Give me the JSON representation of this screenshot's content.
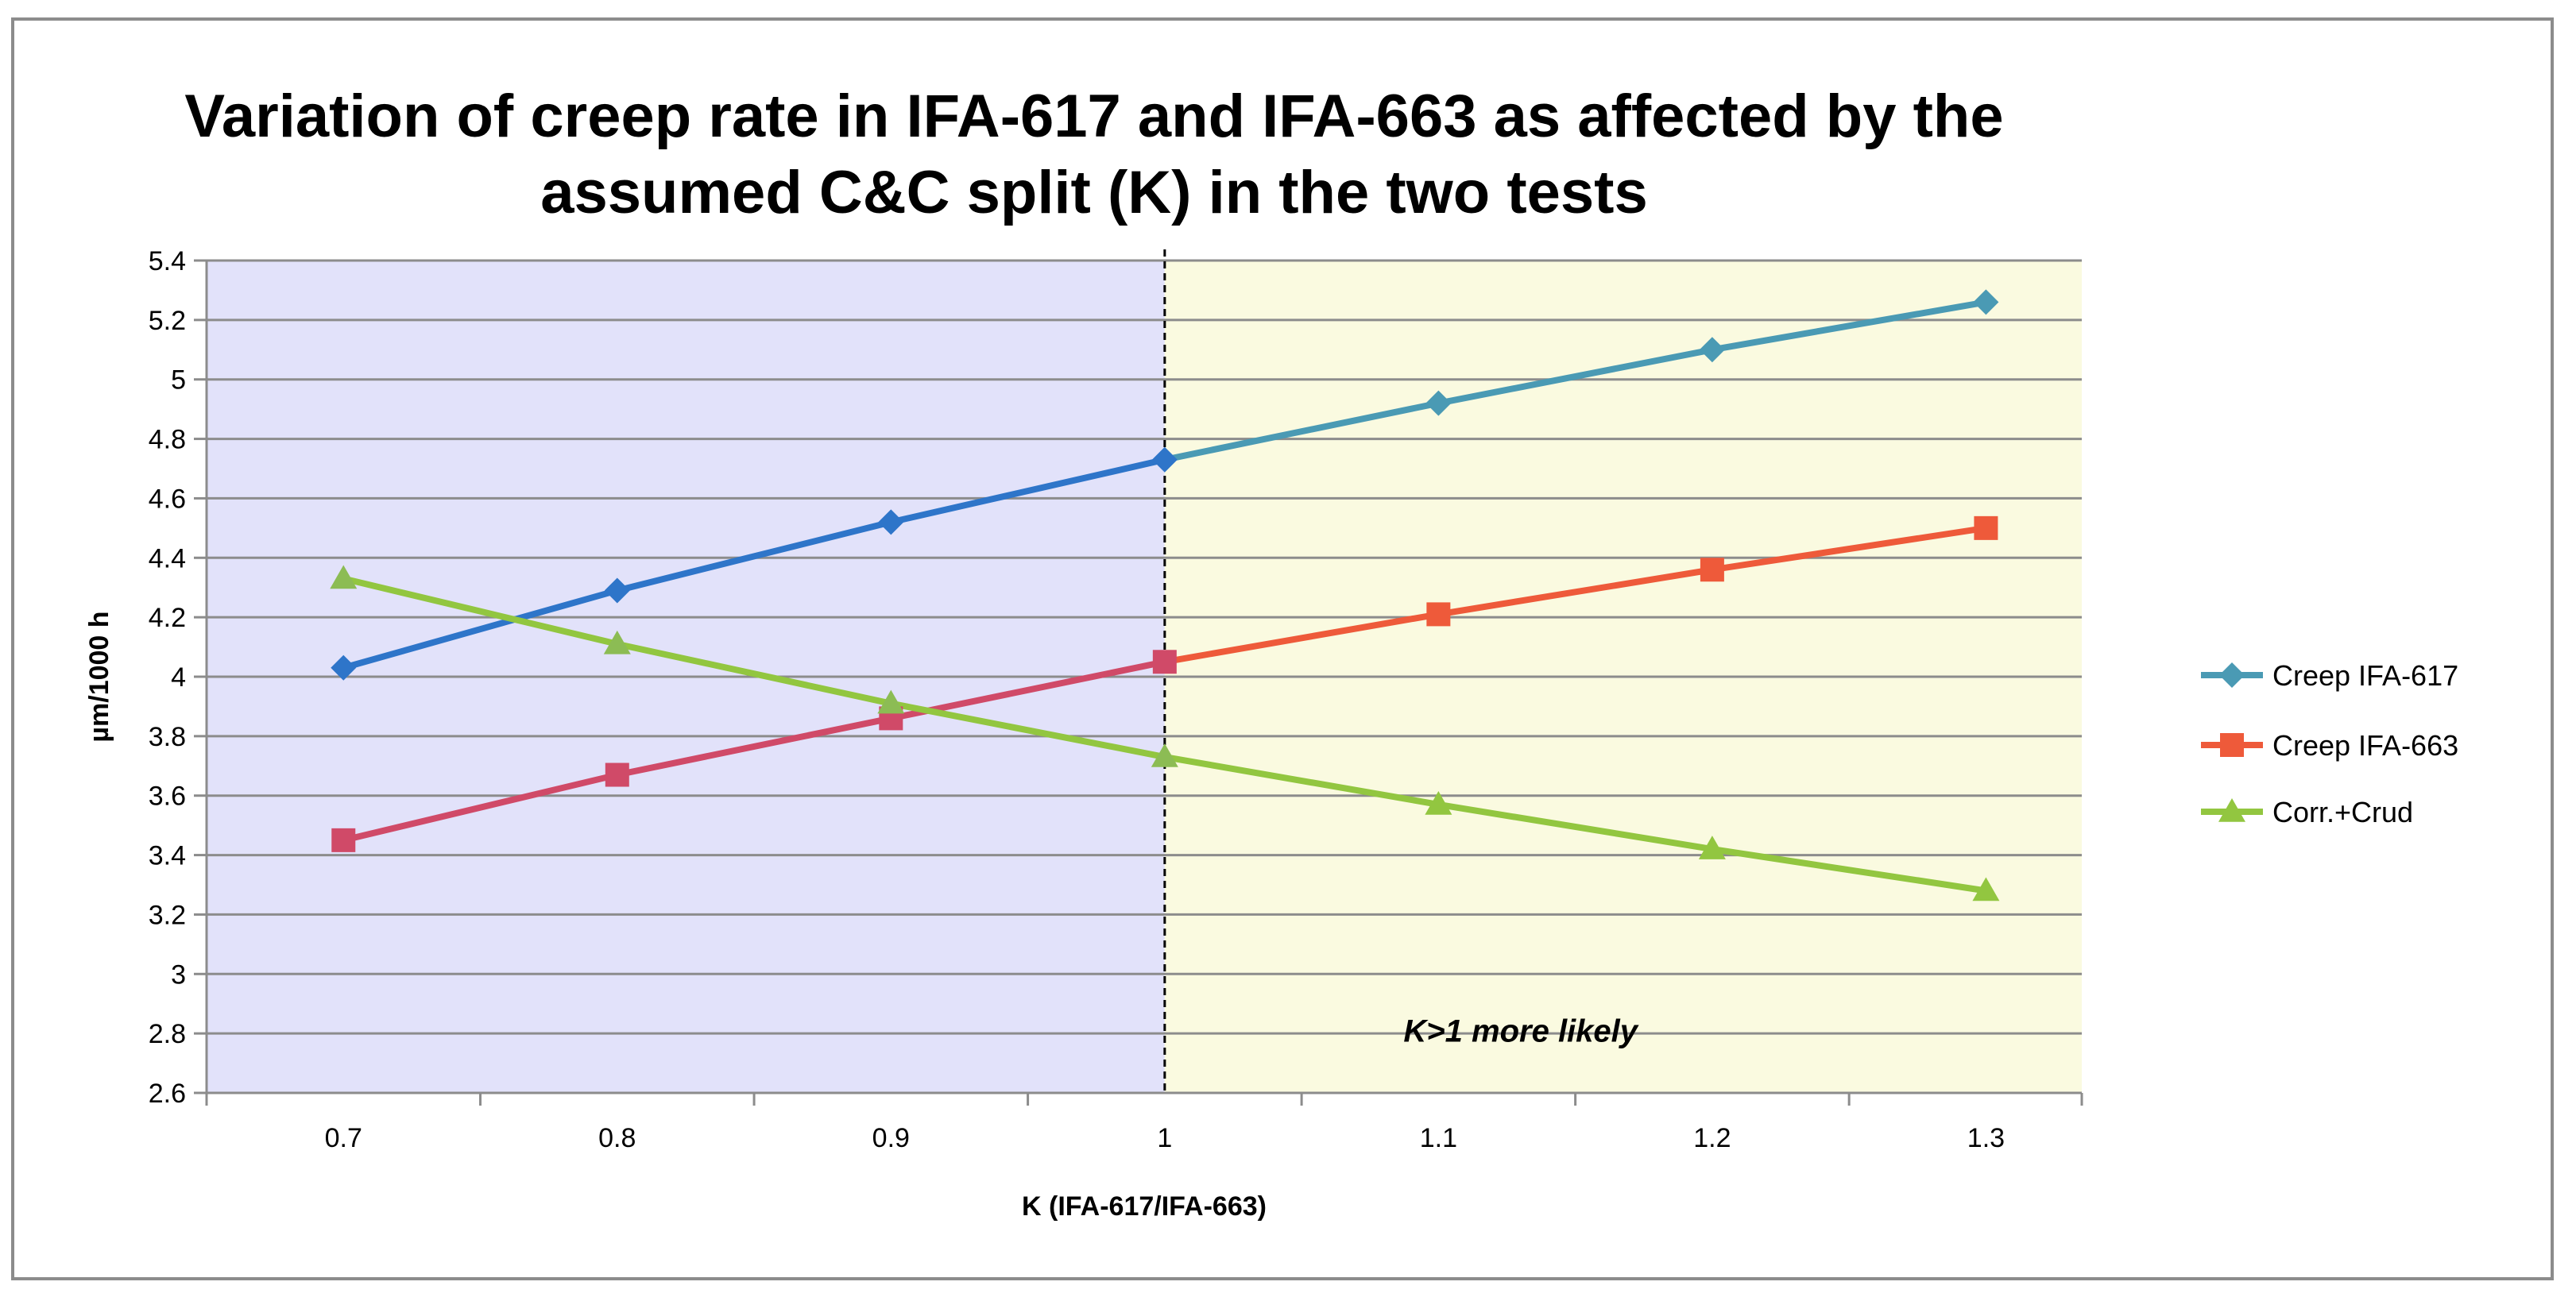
{
  "chart_data": {
    "type": "line",
    "title_lines": [
      "Variation of creep rate in IFA-617 and IFA-663 as affected by the",
      "assumed C&C split (K) in the two tests"
    ],
    "xlabel": "K (IFA-617/IFA-663)",
    "ylabel": "µm/1000 h",
    "x": [
      0.7,
      0.8,
      0.9,
      1.0,
      1.1,
      1.2,
      1.3
    ],
    "x_tick_labels": [
      "0.7",
      "0.8",
      "0.9",
      "1",
      "1.1",
      "1.2",
      "1.3"
    ],
    "ylim": [
      2.6,
      5.4
    ],
    "y_ticks": [
      2.6,
      2.8,
      3.0,
      3.2,
      3.4,
      3.6,
      3.8,
      4.0,
      4.2,
      4.4,
      4.6,
      4.8,
      5.0,
      5.2,
      5.4
    ],
    "y_tick_labels": [
      "2.6",
      "2.8",
      "3",
      "3.2",
      "3.4",
      "3.6",
      "3.8",
      "4",
      "4.2",
      "4.4",
      "4.6",
      "4.8",
      "5",
      "5.2",
      "5.4"
    ],
    "grid": true,
    "legend_position": "right",
    "series": [
      {
        "name": "Creep IFA-617",
        "marker": "diamond",
        "values": [
          4.03,
          4.29,
          4.52,
          4.73,
          4.92,
          5.1,
          5.26
        ]
      },
      {
        "name": "Creep IFA-663",
        "marker": "square",
        "values": [
          3.45,
          3.67,
          3.86,
          4.05,
          4.21,
          4.36,
          4.5
        ]
      },
      {
        "name": "Corr.+Crud",
        "marker": "triangle",
        "values": [
          4.33,
          4.11,
          3.91,
          3.73,
          3.57,
          3.42,
          3.28
        ]
      }
    ],
    "regions": [
      {
        "name": "k-below-1-region",
        "x_from": 0.65,
        "x_to": 1.0,
        "color": "#e2e2fa"
      },
      {
        "name": "k-above-1-region",
        "x_from": 1.0,
        "x_to": 1.335,
        "color": "#fafae0"
      }
    ],
    "divider_x": 1.0,
    "annotation": {
      "text": "K>1 more likely",
      "x": 1.13,
      "y": 2.81
    },
    "colors": {
      "left_series_617": "#2e75c9",
      "right_series_617": "#4a9ab4",
      "left_series_663": "#d04a68",
      "right_series_663": "#ee5a3a",
      "series_crud": "#92c640",
      "crud_marker_left": "#8cbc54",
      "grid": "#8c8c8c",
      "axis": "#8c8c8c",
      "divider": "#000000"
    }
  }
}
